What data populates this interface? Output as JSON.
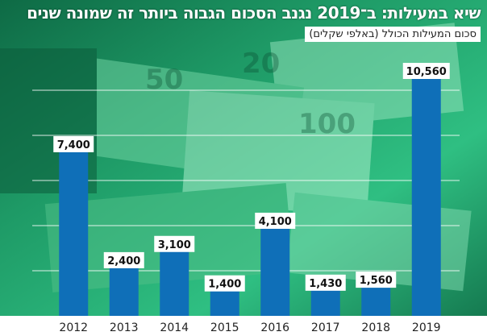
{
  "headline": "שיא במעילות: ב־2019 נגנב הסכום הגבוה ביותר זה שמונה שנים",
  "subtitle": "סכום המעילות הכולל (באלפי שקלים)",
  "colors": {
    "bar": "#0f6fb8",
    "label_bg": "#ffffff",
    "label_text": "#111111",
    "background_tint": "#23b47a",
    "headline_text": "#ffffff",
    "axis_text": "#222222"
  },
  "chart_data": {
    "type": "bar",
    "title": "שיא במעילות: ב־2019 נגנב הסכום הגבוה ביותר זה שמונה שנים",
    "subtitle": "סכום המעילות הכולל (באלפי שקלים)",
    "categories": [
      "2012",
      "2013",
      "2014",
      "2015",
      "2016",
      "2017",
      "2018",
      "2019"
    ],
    "values": [
      7400,
      2400,
      3100,
      1400,
      4100,
      1430,
      1560,
      10560
    ],
    "value_labels": [
      "7,400",
      "2,400",
      "3,100",
      "1,400",
      "4,100",
      "1,430",
      "1,560",
      "10,560"
    ],
    "xlabel": "",
    "ylabel": "",
    "ylim": [
      0,
      11000
    ],
    "grid": true,
    "legend": "none"
  }
}
